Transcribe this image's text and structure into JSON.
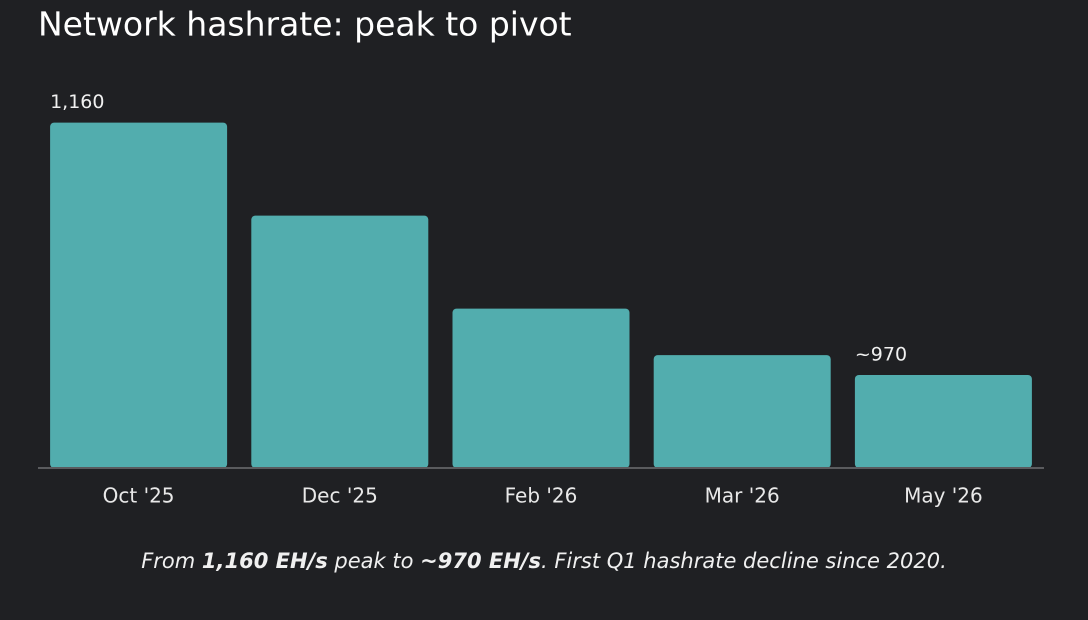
{
  "chart_data": {
    "type": "bar",
    "title": "Network hashrate: peak to pivot",
    "categories": [
      "Oct '25",
      "Dec '25",
      "Feb '26",
      "Mar '26",
      "May '26"
    ],
    "values": [
      1160,
      1090,
      1020,
      985,
      970
    ],
    "value_labels": [
      "1,160",
      null,
      null,
      null,
      "~970"
    ],
    "color": "#52adae",
    "ylim": [
      900,
      1180
    ],
    "note": [
      "From ",
      "1,160 EH/s",
      " peak to ",
      "~970 EH/s",
      ". First Q1 hashrate decline since 2020."
    ]
  }
}
